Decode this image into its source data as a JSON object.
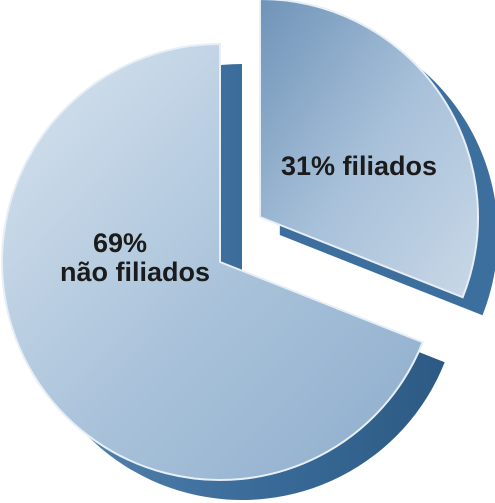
{
  "chart_data": {
    "type": "pie",
    "title": "",
    "slices": [
      {
        "label": "não filiados",
        "value": 69,
        "value_text": "69%",
        "color": "#aac3dc",
        "exploded": false
      },
      {
        "label": "filiados",
        "value": 31,
        "value_text": "31% filiados",
        "color": "#86a8c8",
        "exploded": true
      }
    ],
    "style": "3d-exploded",
    "legend": "none"
  },
  "colors": {
    "side_shadow": "#3d6f9e",
    "side_shadow_dark": "#2f5c87",
    "highlight": "#e6eef6",
    "background": "#ffffff"
  }
}
